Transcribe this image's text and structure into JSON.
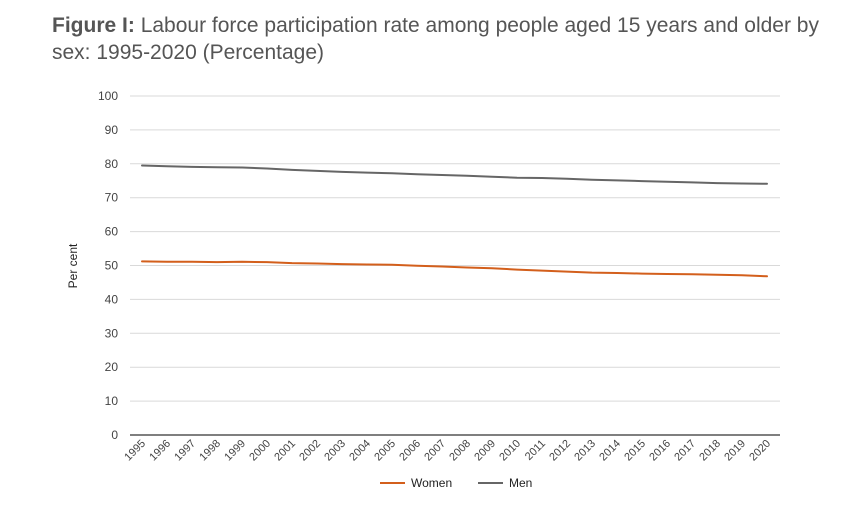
{
  "figure": {
    "label": "Figure I:",
    "title": "Labour force participation rate among people aged 15 years and older by sex: 1995-2020 (Percentage)"
  },
  "chart_data": {
    "type": "line",
    "ylabel": "Per cent",
    "ylim": [
      0,
      100
    ],
    "yticks": [
      0,
      10,
      20,
      30,
      40,
      50,
      60,
      70,
      80,
      90,
      100
    ],
    "grid": true,
    "legend_position": "bottom",
    "x": [
      "1995",
      "1996",
      "1997",
      "1998",
      "1999",
      "2000",
      "2001",
      "2002",
      "2003",
      "2004",
      "2005",
      "2006",
      "2007",
      "2008",
      "2009",
      "2010",
      "2011",
      "2012",
      "2013",
      "2014",
      "2015",
      "2016",
      "2017",
      "2018",
      "2019",
      "2020"
    ],
    "series": [
      {
        "name": "Women",
        "color": "#d35f1c",
        "values": [
          51.2,
          51.1,
          51.1,
          51.0,
          51.1,
          51.0,
          50.7,
          50.6,
          50.4,
          50.3,
          50.2,
          49.9,
          49.7,
          49.4,
          49.2,
          48.8,
          48.5,
          48.2,
          47.9,
          47.8,
          47.6,
          47.5,
          47.4,
          47.3,
          47.1,
          46.8
        ]
      },
      {
        "name": "Men",
        "color": "#666666",
        "values": [
          79.5,
          79.3,
          79.1,
          79.0,
          78.9,
          78.6,
          78.2,
          77.9,
          77.6,
          77.4,
          77.2,
          76.9,
          76.7,
          76.5,
          76.2,
          75.9,
          75.8,
          75.6,
          75.3,
          75.1,
          74.9,
          74.7,
          74.5,
          74.3,
          74.2,
          74.1
        ]
      }
    ]
  }
}
